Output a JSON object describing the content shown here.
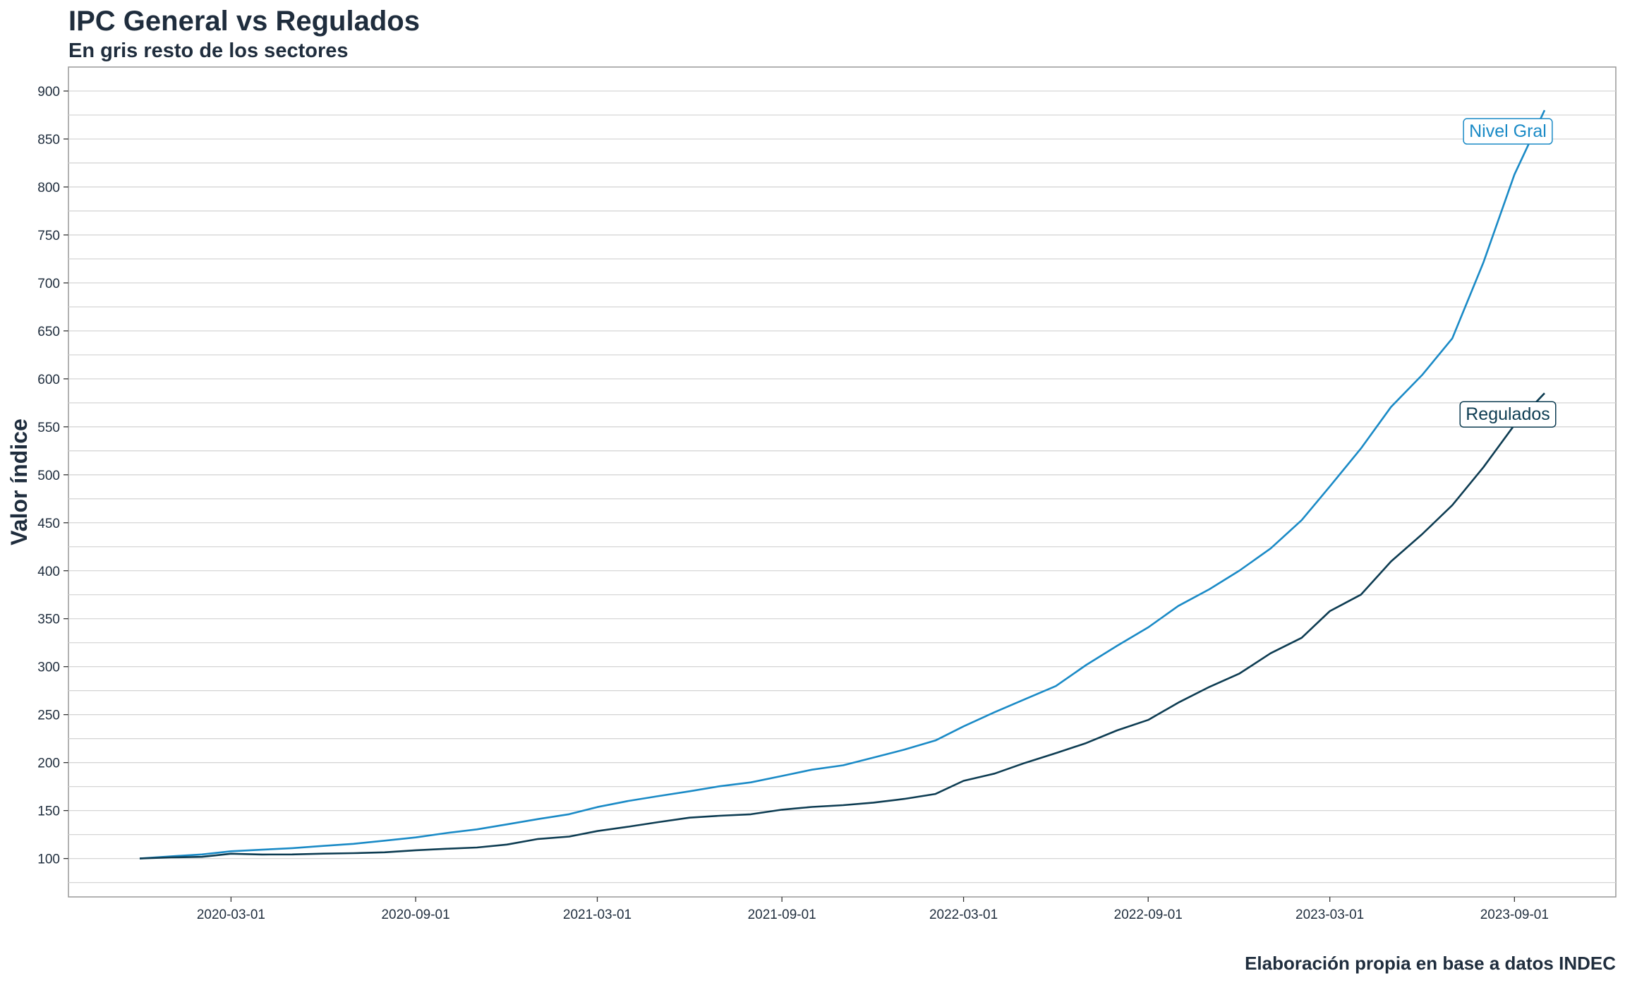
{
  "chart_data": {
    "type": "line",
    "title": "IPC General vs Regulados",
    "subtitle": "En gris resto de los sectores",
    "caption": "Elaboración propia en base a datos INDEC",
    "xlabel": "",
    "ylabel": "Valor índice",
    "ylim": [
      60,
      925
    ],
    "yticks": [
      100,
      150,
      200,
      250,
      300,
      350,
      400,
      450,
      500,
      550,
      600,
      650,
      700,
      750,
      800,
      850,
      900
    ],
    "xticks": [
      "2020-03-01",
      "2020-09-01",
      "2021-03-01",
      "2021-09-01",
      "2022-03-01",
      "2022-09-01",
      "2023-03-01",
      "2023-09-01"
    ],
    "x": [
      "2019-12-01",
      "2020-01-01",
      "2020-02-01",
      "2020-03-01",
      "2020-04-01",
      "2020-05-01",
      "2020-06-01",
      "2020-07-01",
      "2020-08-01",
      "2020-09-01",
      "2020-10-01",
      "2020-11-01",
      "2020-12-01",
      "2021-01-01",
      "2021-02-01",
      "2021-03-01",
      "2021-04-01",
      "2021-05-01",
      "2021-06-01",
      "2021-07-01",
      "2021-08-01",
      "2021-09-01",
      "2021-10-01",
      "2021-11-01",
      "2021-12-01",
      "2022-01-01",
      "2022-02-01",
      "2022-03-01",
      "2022-04-01",
      "2022-05-01",
      "2022-06-01",
      "2022-07-01",
      "2022-08-01",
      "2022-09-01",
      "2022-10-01",
      "2022-11-01",
      "2022-12-01",
      "2023-01-01",
      "2023-02-01",
      "2023-03-01",
      "2023-04-01",
      "2023-05-01",
      "2023-06-01",
      "2023-07-01",
      "2023-08-01",
      "2023-09-01",
      "2023-10-01"
    ],
    "grid": true,
    "series": [
      {
        "name": "Nivel Gral",
        "color": "#1a8ac6",
        "values": [
          100,
          102.3,
          104.3,
          107.6,
          109.2,
          110.8,
          113.2,
          115.3,
          118.6,
          122.0,
          126.5,
          130.4,
          135.6,
          141.1,
          146.2,
          153.6,
          160.0,
          165.1,
          170.1,
          175.3,
          179.4,
          186.1,
          192.6,
          197.2,
          205.2,
          213.5,
          223.1,
          237.8,
          252.6,
          266.0,
          279.8,
          301.6,
          321.8,
          341.0,
          363.3,
          380.7,
          400.2,
          423.2,
          452.7,
          487.9,
          527.4,
          570.7,
          604.0,
          642.1,
          721.0,
          813.0,
          880.0
        ]
      },
      {
        "name": "Regulados",
        "color": "#0d3c52",
        "values": [
          100,
          101.2,
          101.8,
          105.0,
          104.2,
          104.3,
          105.1,
          105.6,
          106.5,
          108.6,
          110.2,
          111.5,
          114.6,
          120.4,
          122.9,
          128.6,
          133.2,
          138.0,
          142.6,
          144.6,
          146.1,
          150.9,
          153.8,
          155.6,
          158.3,
          162.2,
          167.3,
          181.0,
          188.6,
          199.6,
          209.8,
          220.3,
          233.6,
          244.5,
          262.5,
          278.9,
          292.9,
          314.0,
          330.1,
          357.9,
          375.0,
          409.7,
          438.1,
          468.3,
          507.7,
          551.9,
          585.0
        ]
      }
    ]
  }
}
